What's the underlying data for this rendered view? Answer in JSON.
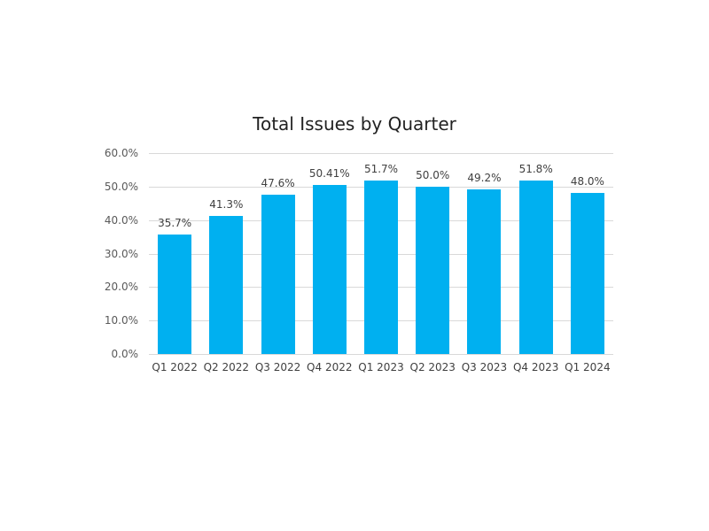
{
  "chart_data": {
    "type": "bar",
    "title": "Total Issues by Quarter",
    "xlabel": "",
    "ylabel": "",
    "categories": [
      "Q1 2022",
      "Q2 2022",
      "Q3 2022",
      "Q4 2022",
      "Q1 2023",
      "Q2 2023",
      "Q3 2023",
      "Q4 2023",
      "Q1 2024"
    ],
    "values": [
      35.7,
      41.3,
      47.6,
      50.41,
      51.7,
      50.0,
      49.2,
      51.8,
      48.0
    ],
    "data_labels": [
      "35.7%",
      "41.3%",
      "47.6%",
      "50.41%",
      "51.7%",
      "50.0%",
      "49.2%",
      "51.8%",
      "48.0%"
    ],
    "ylim": [
      0,
      60
    ],
    "yticks": [
      "0.0%",
      "10.0%",
      "20.0%",
      "30.0%",
      "40.0%",
      "50.0%",
      "60.0%"
    ],
    "grid": true,
    "legend": null,
    "bar_color": "#00b0f0"
  }
}
